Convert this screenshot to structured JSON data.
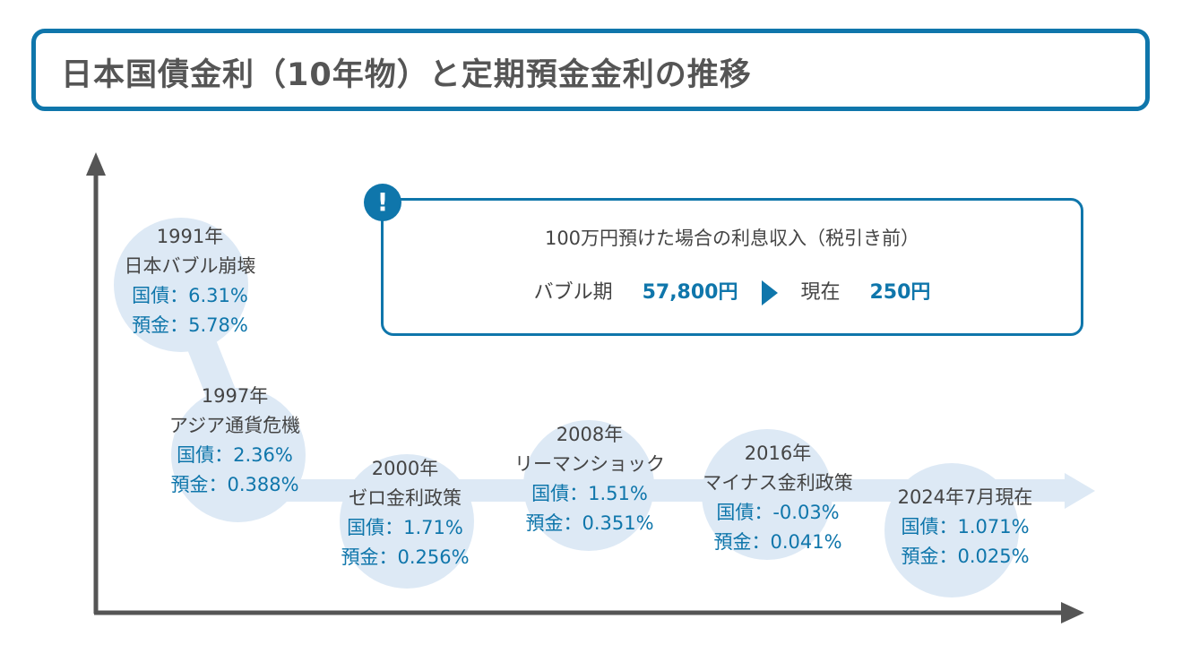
{
  "title": "日本国債金利（10年物）と定期預金金利の推移",
  "info": {
    "icon": "exclamation-icon",
    "heading": "100万円預けた場合の利息収入（税引き前）",
    "bubble_label": "バブル期",
    "bubble_value": "57,800円",
    "now_label": "現在",
    "now_value": "250円"
  },
  "colors": {
    "accent": "#0f76ab",
    "bubble": "#dde9f5",
    "axis": "#555555"
  },
  "events": [
    {
      "year": "1991年",
      "name": "日本バブル崩壊",
      "bond": "国債：6.31%",
      "deposit": "預金：5.78%"
    },
    {
      "year": "1997年",
      "name": "アジア通貨危機",
      "bond": "国債：2.36%",
      "deposit": "預金：0.388%"
    },
    {
      "year": "2000年",
      "name": "ゼロ金利政策",
      "bond": "国債：1.71%",
      "deposit": "預金：0.256%"
    },
    {
      "year": "2008年",
      "name": "リーマンショック",
      "bond": "国債：1.51%",
      "deposit": "預金：0.351%"
    },
    {
      "year": "2016年",
      "name": "マイナス金利政策",
      "bond": "国債：-0.03%",
      "deposit": "預金：0.041%"
    },
    {
      "year": "2024年7月現在",
      "name": "",
      "bond": "国債：1.071%",
      "deposit": "預金：0.025%"
    }
  ]
}
